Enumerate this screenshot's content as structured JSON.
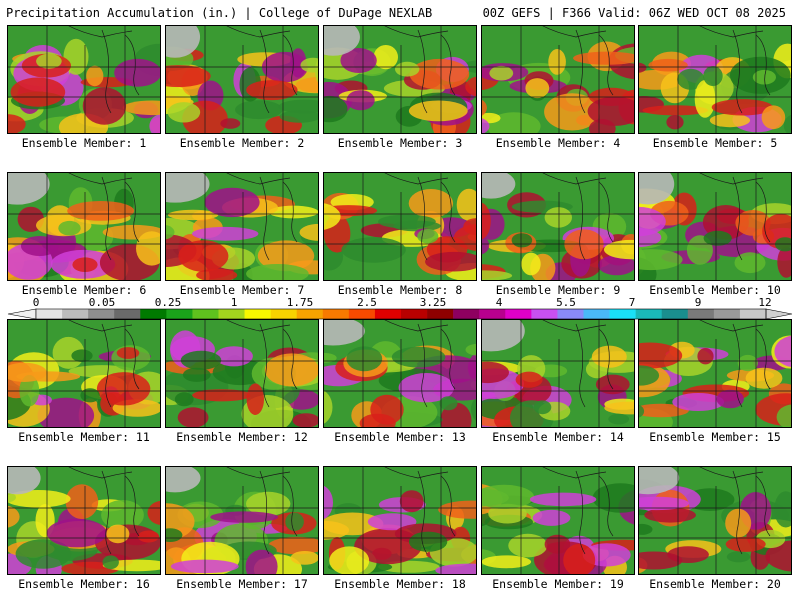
{
  "header": {
    "title": "Precipitation Accumulation (in.) | College of DuPage NEXLAB",
    "run_info": "00Z GEFS | F366 Valid: 06Z WED OCT 08 2025"
  },
  "legend": {
    "labels": [
      "0",
      "0.05",
      "0.25",
      "1",
      "1.75",
      "2.5",
      "3.25",
      "4",
      "5.5",
      "7",
      "9",
      "12"
    ],
    "colors": [
      "#e4e4e4",
      "#bcbcbc",
      "#8e8e8e",
      "#6a6a6a",
      "#007a00",
      "#1aa31a",
      "#5fc21e",
      "#a3d61e",
      "#f7f700",
      "#f7d200",
      "#f7a300",
      "#f77a00",
      "#f74a00",
      "#e00000",
      "#b80000",
      "#8e0000",
      "#8e0060",
      "#b8008e",
      "#e000c8",
      "#c850f0",
      "#8a8af7",
      "#4ab8f7",
      "#1ae0f7",
      "#1ab8b8",
      "#1a8e8e",
      "#7a7a7a",
      "#9a9a9a",
      "#c8c8c8"
    ]
  },
  "panels": [
    {
      "caption": "Ensemble Member: 1"
    },
    {
      "caption": "Ensemble Member: 2"
    },
    {
      "caption": "Ensemble Member: 3"
    },
    {
      "caption": "Ensemble Member: 4"
    },
    {
      "caption": "Ensemble Member: 5"
    },
    {
      "caption": "Ensemble Member: 6"
    },
    {
      "caption": "Ensemble Member: 7"
    },
    {
      "caption": "Ensemble Member: 8"
    },
    {
      "caption": "Ensemble Member: 9"
    },
    {
      "caption": "Ensemble Member: 10"
    },
    {
      "caption": "Ensemble Member: 11"
    },
    {
      "caption": "Ensemble Member: 12"
    },
    {
      "caption": "Ensemble Member: 13"
    },
    {
      "caption": "Ensemble Member: 14"
    },
    {
      "caption": "Ensemble Member: 15"
    },
    {
      "caption": "Ensemble Member: 16"
    },
    {
      "caption": "Ensemble Member: 17"
    },
    {
      "caption": "Ensemble Member: 18"
    },
    {
      "caption": "Ensemble Member: 19"
    },
    {
      "caption": "Ensemble Member: 20"
    }
  ]
}
